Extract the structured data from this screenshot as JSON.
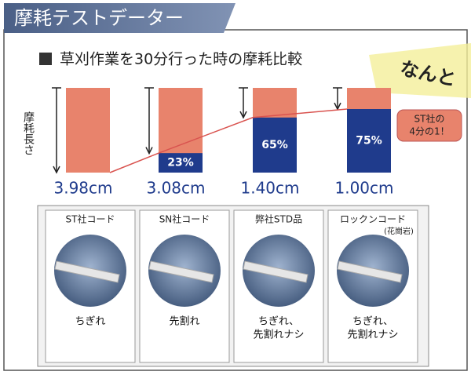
{
  "header": {
    "title": "摩耗テストデーター"
  },
  "chart_data": {
    "type": "bar",
    "title": "草刈作業を30分行った時の摩耗比較",
    "y_label": "摩耗長さ",
    "wear": {
      "values": [
        3.98,
        3.08,
        1.4,
        1.0
      ],
      "value_labels": [
        "3.98cm",
        "3.08cm",
        "1.40cm",
        "1.00cm"
      ],
      "color": "#e8836c"
    },
    "remaining": {
      "values": [
        null,
        23,
        65,
        75
      ],
      "value_labels": [
        null,
        "23%",
        "65%",
        "75%"
      ],
      "color": "#1f3b8c"
    },
    "line_color": "#d9534f",
    "exclaim": "なんと",
    "callout": [
      "ST社の",
      "4分の1！"
    ]
  },
  "samples": [
    {
      "label": "ST社コード",
      "result": [
        "ちぎれ"
      ]
    },
    {
      "label": "SN社コード",
      "result": [
        "先割れ"
      ]
    },
    {
      "label": "弊社STD品",
      "result": [
        "ちぎれ、",
        "先割れナシ"
      ]
    },
    {
      "label": "ロックンコード",
      "note": "(花崗岩)",
      "result": [
        "ちぎれ、",
        "先割れナシ"
      ]
    }
  ]
}
